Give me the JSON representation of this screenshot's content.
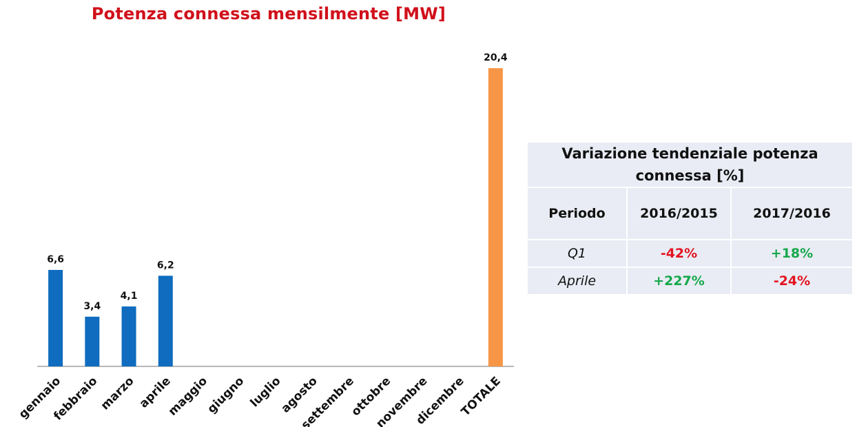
{
  "chart_data": {
    "type": "bar",
    "title": "Potenza connessa mensilmente [MW]",
    "categories": [
      "gennaio",
      "febbraio",
      "marzo",
      "aprile",
      "maggio",
      "giugno",
      "luglio",
      "agosto",
      "settembre",
      "ottobre",
      "novembre",
      "dicembre",
      "TOTALE"
    ],
    "values": [
      6.6,
      3.4,
      4.1,
      6.2,
      null,
      null,
      null,
      null,
      null,
      null,
      null,
      null,
      20.4
    ],
    "value_labels": [
      "6,6",
      "3,4",
      "4,1",
      "6,2",
      "",
      "",
      "",
      "",
      "",
      "",
      "",
      "",
      "20,4"
    ],
    "colors": [
      "#0f6cbf",
      "#0f6cbf",
      "#0f6cbf",
      "#0f6cbf",
      "#0f6cbf",
      "#0f6cbf",
      "#0f6cbf",
      "#0f6cbf",
      "#0f6cbf",
      "#0f6cbf",
      "#0f6cbf",
      "#0f6cbf",
      "#f79646"
    ],
    "ylim": [
      0,
      20.4
    ],
    "grid": false,
    "xlabel": "",
    "ylabel": ""
  },
  "table": {
    "title": "Variazione tendenziale potenza connessa [%]",
    "headers": [
      "Periodo",
      "2016/2015",
      "2017/2016"
    ],
    "rows": [
      [
        "Q1",
        "-42%",
        "+18%"
      ],
      [
        "Aprile",
        "+227%",
        "-24%"
      ]
    ],
    "negative_color": "#e3121f",
    "positive_color": "#15a84b"
  }
}
